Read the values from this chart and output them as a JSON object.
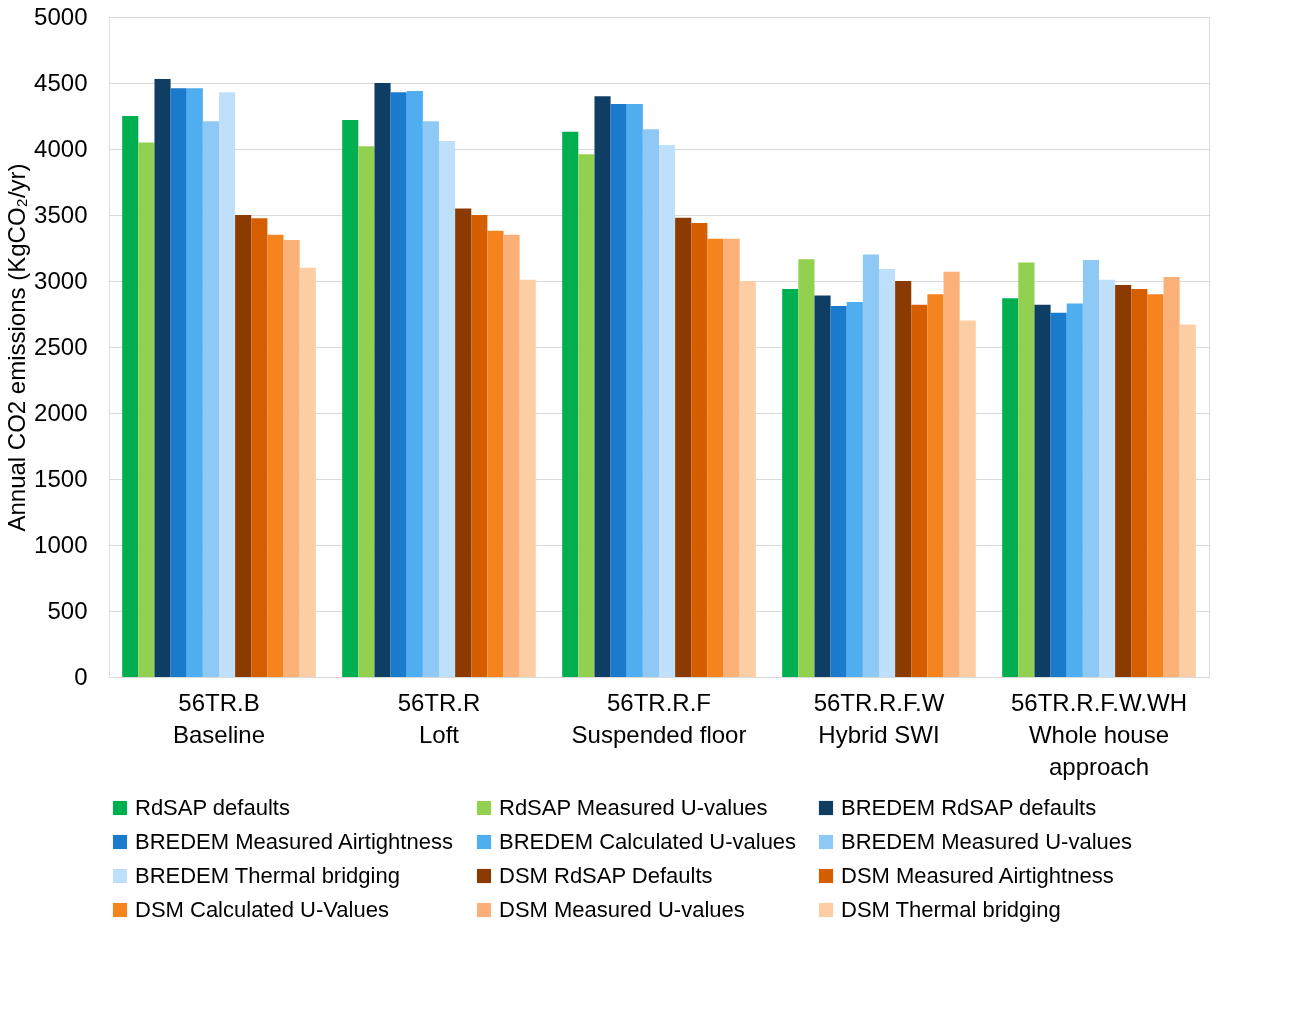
{
  "chart_data": {
    "type": "bar",
    "ylabel": "Annual CO2 emissions (KgCO₂/yr)",
    "categories": [
      "56TR.B\nBaseline",
      "56TR.R\nLoft",
      "56TR.R.F\nSuspended floor",
      "56TR.R.F.W\nHybrid SWI",
      "56TR.R.F.W.WH\nWhole house\napproach"
    ],
    "ylim": [
      0,
      5000
    ],
    "yticks": [
      0,
      500,
      1000,
      1500,
      2000,
      2500,
      3000,
      3500,
      4000,
      4500,
      5000
    ],
    "grid": "y",
    "legend": "bottom",
    "series": [
      {
        "name": "RdSAP defaults",
        "color": "#00b050",
        "values": [
          4250,
          4220,
          4130,
          2940,
          2870
        ]
      },
      {
        "name": "RdSAP Measured U-values",
        "color": "#92d050",
        "values": [
          4050,
          4020,
          3960,
          3165,
          3140
        ]
      },
      {
        "name": "BREDEM RdSAP defaults",
        "color": "#0f3e64",
        "values": [
          4530,
          4500,
          4400,
          2890,
          2820
        ]
      },
      {
        "name": "BREDEM Measured Airtightness",
        "color": "#1a7acb",
        "values": [
          4460,
          4430,
          4340,
          2810,
          2760
        ]
      },
      {
        "name": "BREDEM Calculated U-values",
        "color": "#4eaef0",
        "values": [
          4460,
          4440,
          4340,
          2840,
          2830
        ]
      },
      {
        "name": "BREDEM Measured U-values",
        "color": "#8ec8f5",
        "values": [
          4210,
          4210,
          4150,
          3200,
          3160
        ]
      },
      {
        "name": "BREDEM Thermal bridging",
        "color": "#bfe0fa",
        "values": [
          4430,
          4060,
          4030,
          3090,
          3010
        ]
      },
      {
        "name": "DSM RdSAP Defaults",
        "color": "#8b3a00",
        "values": [
          3500,
          3550,
          3480,
          3000,
          2970
        ]
      },
      {
        "name": "DSM Measured Airtightness",
        "color": "#d45e00",
        "values": [
          3475,
          3500,
          3440,
          2820,
          2940
        ]
      },
      {
        "name": "DSM Calculated U-Values",
        "color": "#f5841f",
        "values": [
          3350,
          3380,
          3320,
          2900,
          2900
        ]
      },
      {
        "name": "DSM Measured U-values",
        "color": "#fbb078",
        "values": [
          3310,
          3350,
          3320,
          3070,
          3030
        ]
      },
      {
        "name": "DSM Thermal bridging",
        "color": "#fdcda3",
        "values": [
          3100,
          3010,
          3000,
          2700,
          2670
        ]
      }
    ]
  }
}
